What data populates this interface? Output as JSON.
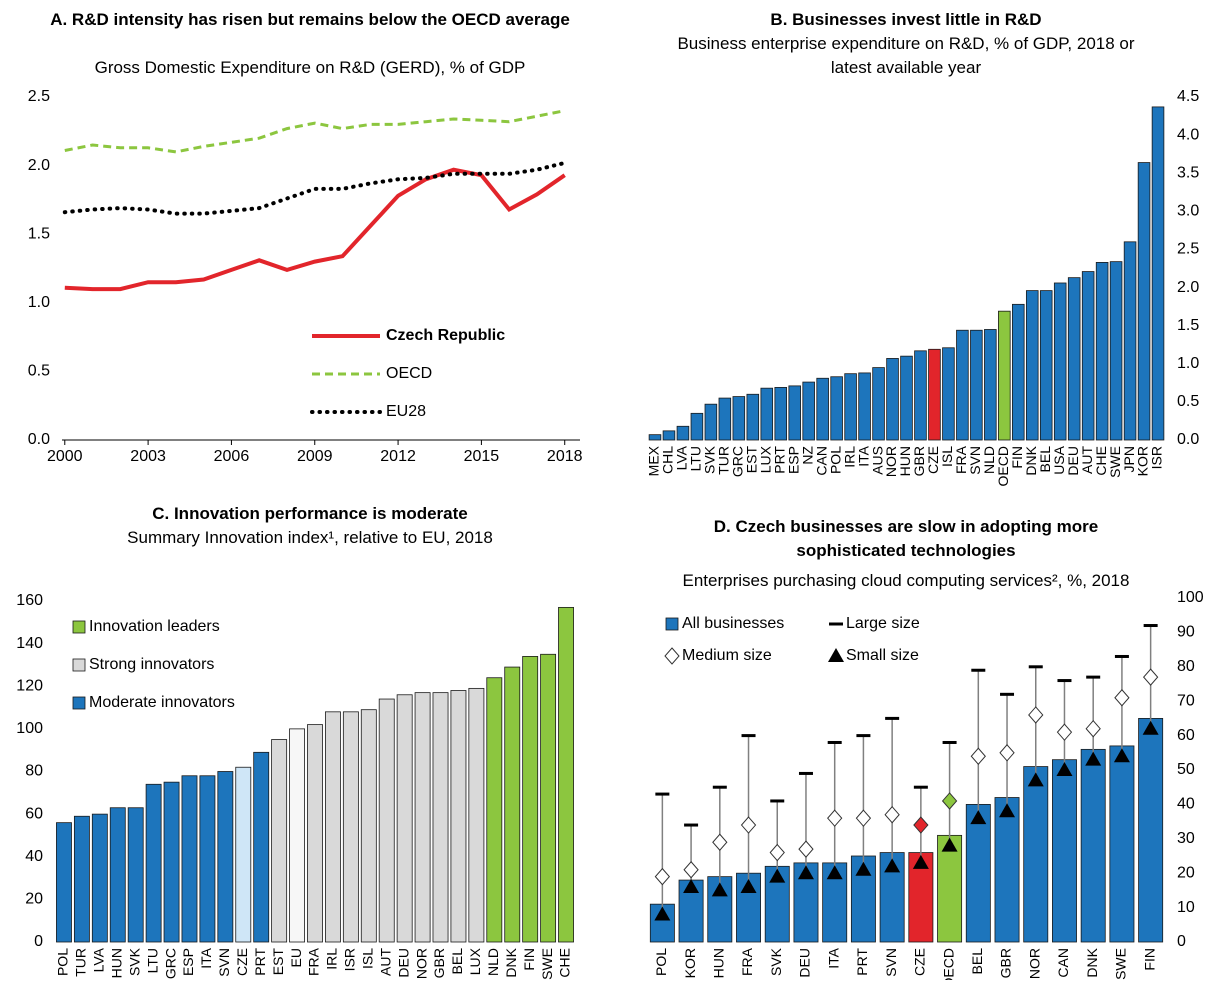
{
  "chart_data": [
    {
      "type": "line",
      "title": "A. R&D intensity has risen but remains below the OECD average",
      "subtitle": "Gross Domestic Expenditure on R&D (GERD), % of GDP",
      "x": [
        2000,
        2001,
        2002,
        2003,
        2004,
        2005,
        2006,
        2007,
        2008,
        2009,
        2010,
        2011,
        2012,
        2013,
        2014,
        2015,
        2016,
        2017,
        2018
      ],
      "xlim": [
        1999.9,
        2018.55
      ],
      "xticks": [
        2000,
        2003,
        2006,
        2009,
        2012,
        2015,
        2018
      ],
      "ylim": [
        0,
        2.5
      ],
      "yticks": [
        {
          "value": 0,
          "label": "0.0"
        },
        0.5,
        {
          "value": 1,
          "label": "1.0"
        },
        1.5,
        {
          "value": 2,
          "label": "2.0"
        },
        2.5
      ],
      "yaxis_side": "left",
      "legend": "lower right",
      "series": [
        {
          "name": "Czech Republic",
          "color": "#e2252b",
          "style": "solid",
          "values": [
            1.11,
            1.1,
            1.1,
            1.15,
            1.15,
            1.17,
            1.24,
            1.31,
            1.24,
            1.3,
            1.34,
            1.56,
            1.78,
            1.9,
            1.97,
            1.93,
            1.68,
            1.79,
            1.93
          ]
        },
        {
          "name": "OECD",
          "color": "#8cc63f",
          "style": "dashed",
          "values": [
            2.11,
            2.15,
            2.13,
            2.13,
            2.1,
            2.14,
            2.17,
            2.2,
            2.27,
            2.31,
            2.27,
            2.3,
            2.3,
            2.32,
            2.34,
            2.33,
            2.32,
            2.36,
            2.4
          ]
        },
        {
          "name": "EU28",
          "color": "#000000",
          "style": "dotted",
          "values": [
            1.66,
            1.68,
            1.69,
            1.68,
            1.65,
            1.65,
            1.67,
            1.69,
            1.76,
            1.83,
            1.83,
            1.87,
            1.9,
            1.91,
            1.94,
            1.94,
            1.94,
            1.97,
            2.02
          ]
        }
      ]
    },
    {
      "type": "bar",
      "title": "B. Businesses invest little in R&D",
      "subtitle": "Business enterprise expenditure on R&D, % of GDP, 2018 or latest available year",
      "categories": [
        "MEX",
        "CHL",
        "LVA",
        "LTU",
        "SVK",
        "TUR",
        "GRC",
        "EST",
        "LUX",
        "PRT",
        "ESP",
        "NZ",
        "CAN",
        "POL",
        "IRL",
        "ITA",
        "AUS",
        "NOR",
        "HUN",
        "GBR",
        "CZE",
        "ISL",
        "FRA",
        "SVN",
        "NLD",
        "OECD",
        "FIN",
        "DNK",
        "BEL",
        "USA",
        "DEU",
        "AUT",
        "CHE",
        "SWE",
        "JPN",
        "KOR",
        "ISR"
      ],
      "ylim": [
        0,
        4.5
      ],
      "yticks": [
        {
          "value": 0,
          "label": "0.0"
        },
        0.5,
        {
          "value": 1,
          "label": "1.0"
        },
        1.5,
        {
          "value": 2,
          "label": "2.0"
        },
        2.5,
        {
          "value": 3,
          "label": "3.0"
        },
        3.5,
        {
          "value": 4,
          "label": "4.0"
        },
        4.5
      ],
      "yaxis_side": "right",
      "series": [
        {
          "color": "#1d75bc",
          "marker": "bar",
          "colors": [
            null,
            null,
            null,
            null,
            null,
            null,
            null,
            null,
            null,
            null,
            null,
            null,
            null,
            null,
            null,
            null,
            null,
            null,
            null,
            null,
            "#e2252b",
            null,
            null,
            null,
            null,
            "#8cc63f",
            null,
            null,
            null,
            null,
            null,
            null,
            null,
            null,
            null,
            null,
            null
          ],
          "values": [
            0.07,
            0.12,
            0.18,
            0.35,
            0.47,
            0.55,
            0.57,
            0.6,
            0.68,
            0.69,
            0.71,
            0.76,
            0.81,
            0.83,
            0.87,
            0.88,
            0.95,
            1.07,
            1.1,
            1.17,
            1.19,
            1.21,
            1.44,
            1.44,
            1.45,
            1.69,
            1.78,
            1.96,
            1.96,
            2.06,
            2.13,
            2.21,
            2.33,
            2.34,
            2.6,
            3.64,
            4.37
          ]
        }
      ]
    },
    {
      "type": "bar",
      "title": "C. Innovation performance is moderate",
      "subtitle": "Summary Innovation index¹, relative to EU, 2018",
      "categories": [
        "POL",
        "TUR",
        "LVA",
        "HUN",
        "SVK",
        "LTU",
        "GRC",
        "ESP",
        "ITA",
        "SVN",
        "CZE",
        "PRT",
        "EST",
        "EU",
        "FRA",
        "IRL",
        "ISR",
        "ISL",
        "AUT",
        "DEU",
        "NOR",
        "GBR",
        "BEL",
        "LUX",
        "NLD",
        "DNK",
        "FIN",
        "SWE",
        "CHE"
      ],
      "ylim": [
        0,
        160
      ],
      "yticks": [
        0,
        20,
        40,
        60,
        80,
        100,
        120,
        140,
        160
      ],
      "yaxis_side": "left",
      "legend": "upper left",
      "series": [
        {
          "name": "Innovation leaders",
          "color": "#8cc63f",
          "marker": "bar",
          "values": [
            null,
            null,
            null,
            null,
            null,
            null,
            null,
            null,
            null,
            null,
            null,
            null,
            null,
            null,
            null,
            null,
            null,
            null,
            null,
            null,
            null,
            null,
            null,
            null,
            124,
            129,
            134,
            135,
            157
          ]
        },
        {
          "name": "Strong innovators",
          "color": "#d9d9d9",
          "marker": "bar",
          "colors": [
            null,
            null,
            null,
            null,
            null,
            null,
            null,
            null,
            null,
            null,
            null,
            null,
            null,
            "#f7f7f7",
            null,
            null,
            null,
            null,
            null,
            null,
            null,
            null,
            null,
            null,
            null,
            null,
            null,
            null,
            null
          ],
          "values": [
            null,
            null,
            null,
            null,
            null,
            null,
            null,
            null,
            null,
            null,
            null,
            null,
            95,
            100,
            102,
            108,
            108,
            109,
            114,
            116,
            117,
            117,
            118,
            119,
            null,
            null,
            null,
            null,
            null
          ]
        },
        {
          "name": "Moderate innovators",
          "color": "#1d75bc",
          "marker": "bar",
          "colors": [
            null,
            null,
            null,
            null,
            null,
            null,
            null,
            null,
            null,
            null,
            "#cfe6f7",
            null,
            null,
            null,
            null,
            null,
            null,
            null,
            null,
            null,
            null,
            null,
            null,
            null,
            null,
            null,
            null,
            null,
            null
          ],
          "values": [
            56,
            59,
            60,
            63,
            63,
            74,
            75,
            78,
            78,
            80,
            82,
            89,
            null,
            null,
            null,
            null,
            null,
            null,
            null,
            null,
            null,
            null,
            null,
            null,
            null,
            null,
            null,
            null,
            null
          ]
        }
      ]
    },
    {
      "type": "bar",
      "title": "D. Czech businesses are slow in adopting more sophisticated technologies",
      "subtitle": "Enterprises purchasing cloud computing services², %, 2018",
      "categories": [
        "POL",
        "KOR",
        "HUN",
        "FRA",
        "SVK",
        "DEU",
        "ITA",
        "PRT",
        "SVN",
        "CZE",
        "OECD",
        "BEL",
        "GBR",
        "NOR",
        "CAN",
        "DNK",
        "SWE",
        "FIN"
      ],
      "ylim": [
        0,
        100
      ],
      "yticks": [
        0,
        10,
        20,
        30,
        40,
        50,
        60,
        70,
        80,
        90,
        100
      ],
      "yaxis_side": "right",
      "legend": "upper left",
      "series": [
        {
          "name": "All businesses",
          "color": "#1d75bc",
          "marker": "bar",
          "colors": [
            null,
            null,
            null,
            null,
            null,
            null,
            null,
            null,
            null,
            "#e2252b",
            "#8cc63f",
            null,
            null,
            null,
            null,
            null,
            null,
            null
          ],
          "values": [
            11,
            18,
            19,
            20,
            22,
            23,
            23,
            25,
            26,
            26,
            31,
            40,
            42,
            51,
            53,
            56,
            57,
            65
          ]
        },
        {
          "name": "Large size",
          "color": "#000000",
          "marker": "dash",
          "values": [
            43,
            34,
            45,
            60,
            41,
            49,
            58,
            60,
            65,
            45,
            58,
            79,
            72,
            80,
            76,
            77,
            83,
            92
          ]
        },
        {
          "name": "Medium size",
          "color": "#ffffff",
          "marker": "diamond",
          "colors": [
            null,
            null,
            null,
            null,
            null,
            null,
            null,
            null,
            null,
            "#e2252b",
            "#8cc63f",
            null,
            null,
            null,
            null,
            null,
            null,
            null
          ],
          "values": [
            19,
            21,
            29,
            34,
            26,
            27,
            36,
            36,
            37,
            34,
            41,
            54,
            55,
            66,
            61,
            62,
            71,
            77
          ]
        },
        {
          "name": "Small size",
          "color": "#000000",
          "marker": "triangle",
          "values": [
            8,
            16,
            15,
            16,
            19,
            20,
            20,
            21,
            22,
            23,
            28,
            36,
            38,
            47,
            50,
            53,
            54,
            62
          ]
        }
      ]
    }
  ]
}
